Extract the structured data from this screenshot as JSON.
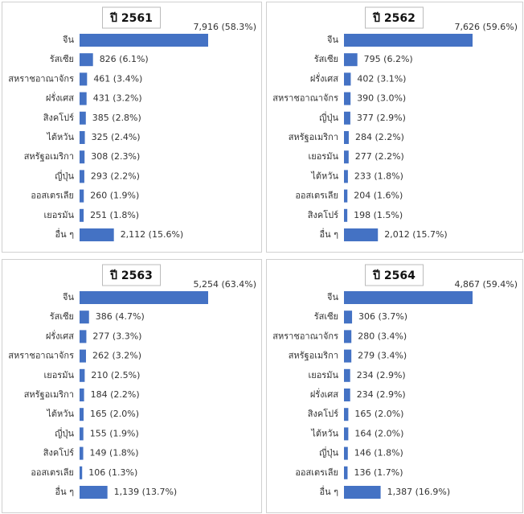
{
  "chart_data": [
    {
      "type": "bar",
      "orientation": "horizontal",
      "title": "ปี 2561",
      "color": "#4472c4",
      "categories": [
        "จีน",
        "รัสเซีย",
        "สหราชอาณาจักร",
        "ฝรั่งเศส",
        "สิงคโปร์",
        "ไต้หวัน",
        "สหรัฐอเมริกา",
        "ญี่ปุ่น",
        "ออสเตรเลีย",
        "เยอรมัน",
        "อื่น ๆ"
      ],
      "values": [
        7916,
        826,
        461,
        431,
        385,
        325,
        308,
        293,
        260,
        251,
        2112
      ],
      "value_labels": [
        "7,916 (58.3%)",
        "826 (6.1%)",
        "461 (3.4%)",
        "431 (3.2%)",
        "385 (2.8%)",
        "325 (2.4%)",
        "308 (2.3%)",
        "293 (2.2%)",
        "260 (1.9%)",
        "251 (1.8%)",
        "2,112 (15.6%)"
      ]
    },
    {
      "type": "bar",
      "orientation": "horizontal",
      "title": "ปี 2562",
      "color": "#4472c4",
      "categories": [
        "จีน",
        "รัสเซีย",
        "ฝรั่งเศส",
        "สหราชอาณาจักร",
        "ญี่ปุ่น",
        "สหรัฐอเมริกา",
        "เยอรมัน",
        "ไต้หวัน",
        "ออสเตรเลีย",
        "สิงคโปร์",
        "อื่น ๆ"
      ],
      "values": [
        7626,
        795,
        402,
        390,
        377,
        284,
        277,
        233,
        204,
        198,
        2012
      ],
      "value_labels": [
        "7,626 (59.6%)",
        "795 (6.2%)",
        "402 (3.1%)",
        "390 (3.0%)",
        "377 (2.9%)",
        "284 (2.2%)",
        "277 (2.2%)",
        "233 (1.8%)",
        "204 (1.6%)",
        "198 (1.5%)",
        "2,012 (15.7%)"
      ]
    },
    {
      "type": "bar",
      "orientation": "horizontal",
      "title": "ปี 2563",
      "color": "#4472c4",
      "categories": [
        "จีน",
        "รัสเซีย",
        "ฝรั่งเศส",
        "สหราชอาณาจักร",
        "เยอรมัน",
        "สหรัฐอเมริกา",
        "ไต้หวัน",
        "ญี่ปุ่น",
        "สิงคโปร์",
        "ออสเตรเลีย",
        "อื่น ๆ"
      ],
      "values": [
        5254,
        386,
        277,
        262,
        210,
        184,
        165,
        155,
        149,
        106,
        1139
      ],
      "value_labels": [
        "5,254 (63.4%)",
        "386 (4.7%)",
        "277 (3.3%)",
        "262 (3.2%)",
        "210 (2.5%)",
        "184 (2.2%)",
        "165 (2.0%)",
        "155 (1.9%)",
        "149 (1.8%)",
        "106 (1.3%)",
        "1,139 (13.7%)"
      ]
    },
    {
      "type": "bar",
      "orientation": "horizontal",
      "title": "ปี 2564",
      "color": "#4472c4",
      "categories": [
        "จีน",
        "รัสเซีย",
        "สหราชอาณาจักร",
        "สหรัฐอเมริกา",
        "เยอรมัน",
        "ฝรั่งเศส",
        "สิงคโปร์",
        "ไต้หวัน",
        "ญี่ปุ่น",
        "ออสเตรเลีย",
        "อื่น ๆ"
      ],
      "values": [
        4867,
        306,
        280,
        279,
        234,
        234,
        165,
        164,
        146,
        136,
        1387
      ],
      "value_labels": [
        "4,867 (59.4%)",
        "306 (3.7%)",
        "280 (3.4%)",
        "279 (3.4%)",
        "234 (2.9%)",
        "234 (2.9%)",
        "165 (2.0%)",
        "164 (2.0%)",
        "146 (1.8%)",
        "136 (1.7%)",
        "1,387 (16.9%)"
      ]
    }
  ]
}
